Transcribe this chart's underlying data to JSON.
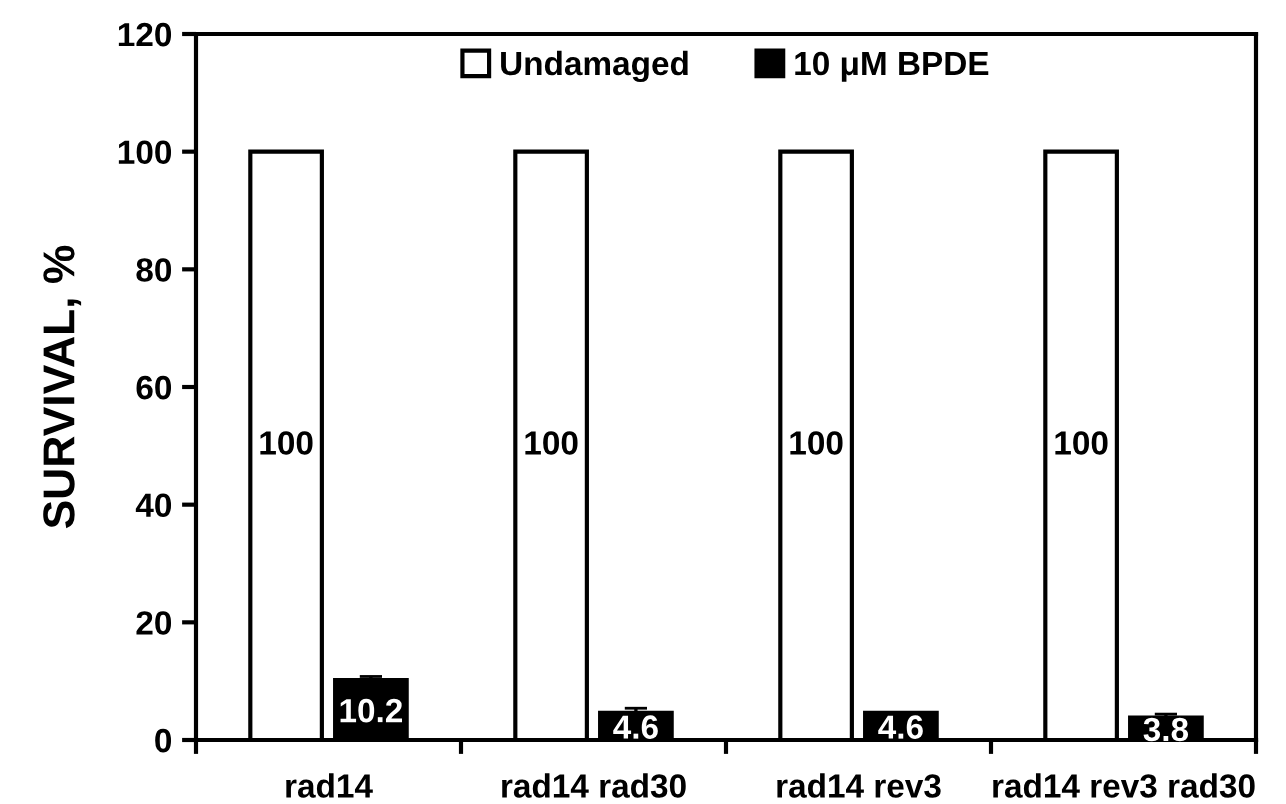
{
  "chart_data": {
    "type": "bar",
    "ylabel": "SURVIVAL, %",
    "categories": [
      "rad14",
      "rad14 rad30",
      "rad14 rev3",
      "rad14 rev3 rad30"
    ],
    "series": [
      {
        "name": "Undamaged",
        "color": "#ffffff",
        "values": [
          100,
          100,
          100,
          100
        ]
      },
      {
        "name": "10 μM BPDE",
        "color": "#000000",
        "values": [
          10.2,
          4.6,
          4.6,
          3.8
        ],
        "errors": [
          0.6,
          0.8,
          null,
          0.6
        ]
      }
    ],
    "ylim": [
      0,
      120
    ],
    "yticks": [
      0,
      20,
      40,
      60,
      80,
      100,
      120
    ],
    "data_labels": true,
    "legend": "top",
    "grid": false
  }
}
